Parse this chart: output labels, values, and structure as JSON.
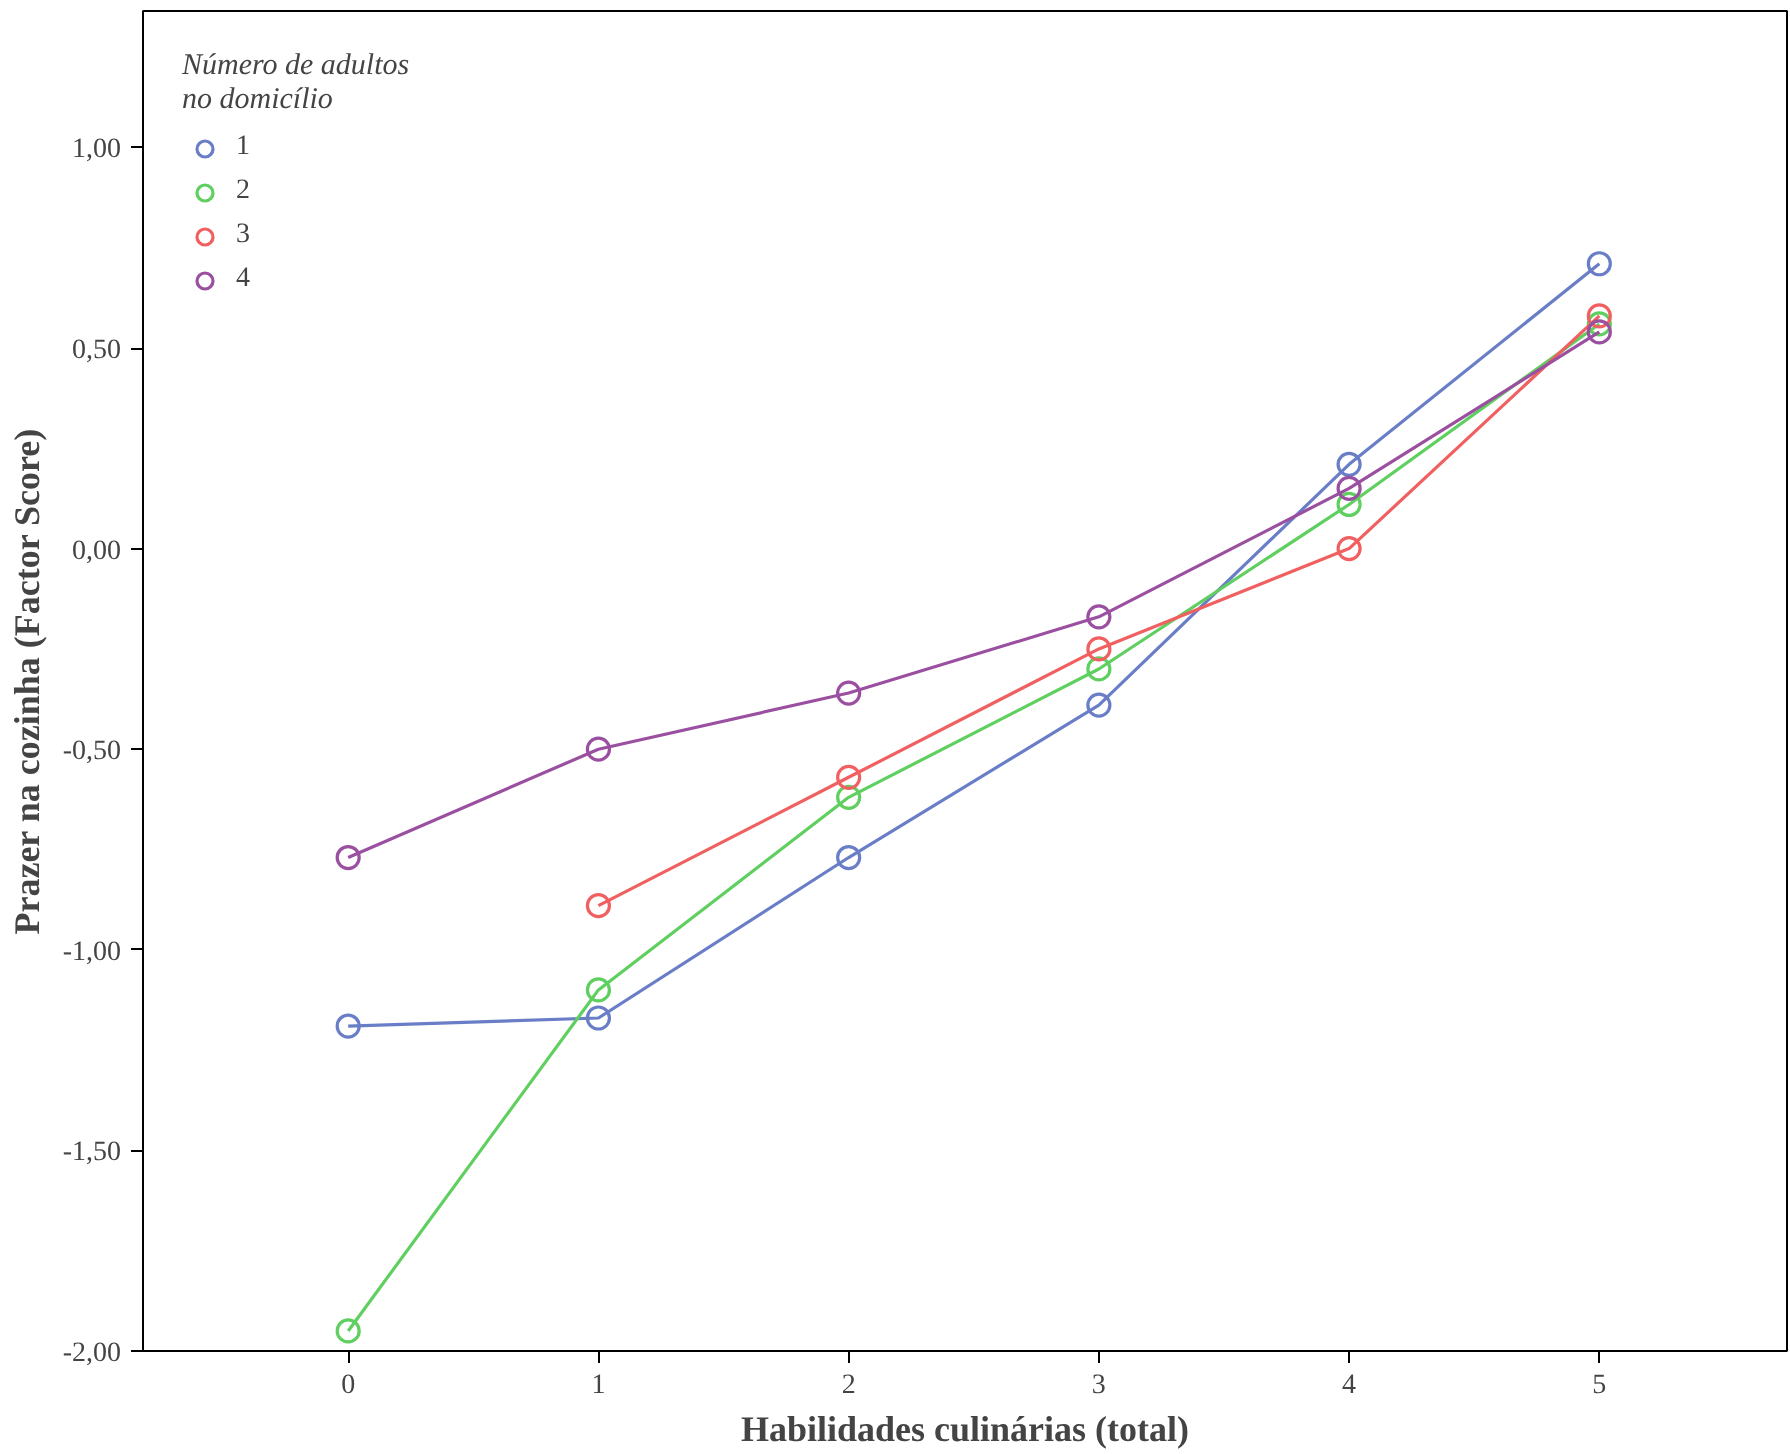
{
  "chart_data": {
    "type": "line",
    "xlabel": "Habilidades culinárias (total)",
    "ylabel": "Prazer na cozinha (Factor Score)",
    "legend_title": "Número de adultos\nno domicílio",
    "x": [
      0,
      1,
      2,
      3,
      4,
      5
    ],
    "series": [
      {
        "name": "1",
        "color": "#6a7ec8",
        "values": [
          -1.19,
          -1.17,
          -0.77,
          -0.39,
          0.21,
          0.71
        ]
      },
      {
        "name": "2",
        "color": "#5fcf5f",
        "values": [
          -1.95,
          -1.1,
          -0.62,
          -0.3,
          0.11,
          0.56
        ]
      },
      {
        "name": "3",
        "color": "#f06060",
        "values": [
          null,
          -0.89,
          -0.57,
          -0.25,
          0.0,
          0.58
        ]
      },
      {
        "name": "4",
        "color": "#9a4fa0",
        "values": [
          -0.77,
          -0.5,
          -0.36,
          -0.17,
          0.15,
          0.54
        ]
      }
    ],
    "xlim": [
      -0.82,
      5.75
    ],
    "ylim": [
      -2.0,
      1.34
    ],
    "xticks": [
      0,
      1,
      2,
      3,
      4,
      5
    ],
    "yticks": [
      {
        "value": -2,
        "label": "-2,00"
      },
      {
        "value": -1.5,
        "label": "-1,50"
      },
      {
        "value": -1,
        "label": "-1,00"
      },
      {
        "value": -0.5,
        "label": "-0,50"
      },
      {
        "value": 0,
        "label": "0,00"
      },
      {
        "value": 0.5,
        "label": "0,50"
      },
      {
        "value": 1,
        "label": "1,00"
      }
    ],
    "grid": false,
    "legend": "top left",
    "marker": "circle",
    "line_style": "solid"
  }
}
